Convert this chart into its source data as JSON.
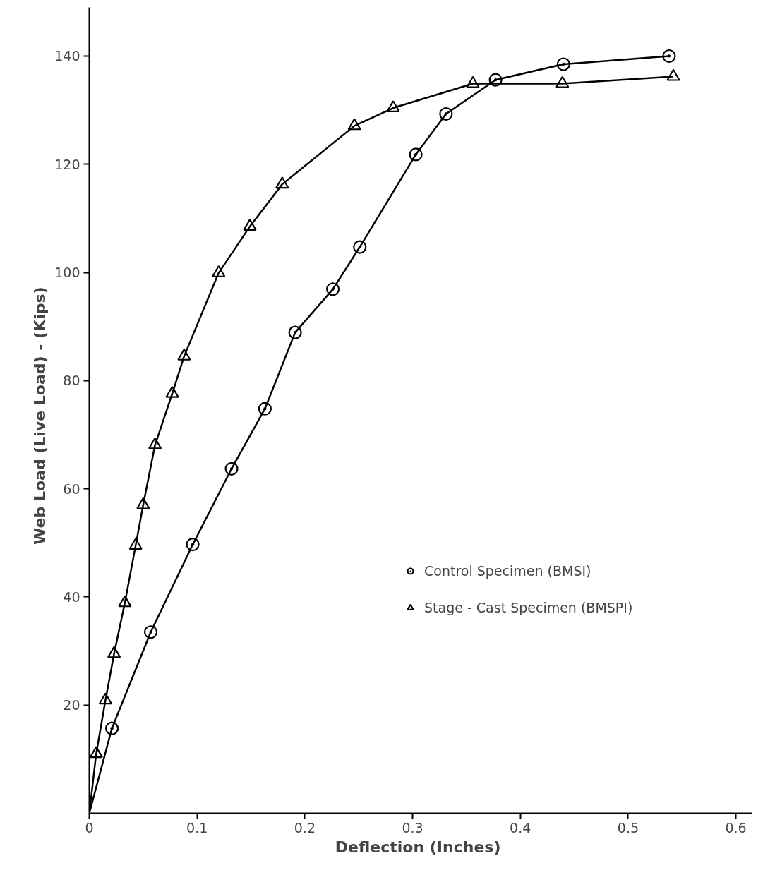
{
  "chart_data": {
    "type": "scatter",
    "xlabel": "Deflection  (Inches)",
    "ylabel": "Web  Load  (Live Load) - (Kips)",
    "xlim": [
      0,
      0.615
    ],
    "ylim": [
      0,
      149
    ],
    "xticks": [
      0,
      0.1,
      0.2,
      0.3,
      0.4,
      0.5,
      0.6
    ],
    "yticks": [
      20,
      40,
      60,
      80,
      100,
      120,
      140
    ],
    "grid": false,
    "legend": "right",
    "series": [
      {
        "name": "Control Specimen (BMSI)",
        "marker": "circle",
        "color": "#000000",
        "x": [
          0.021,
          0.057,
          0.096,
          0.132,
          0.163,
          0.191,
          0.226,
          0.251,
          0.303,
          0.331,
          0.377,
          0.44,
          0.538
        ],
        "values": [
          15.7,
          33.5,
          49.7,
          63.7,
          74.8,
          88.9,
          96.9,
          104.7,
          121.8,
          129.3,
          135.6,
          138.5,
          140.0
        ]
      },
      {
        "name": "Stage - Cast Specimen (BMSPI)",
        "marker": "triangle",
        "color": "#000000",
        "x": [
          0.0064,
          0.015,
          0.023,
          0.033,
          0.043,
          0.05,
          0.061,
          0.077,
          0.088,
          0.12,
          0.149,
          0.179,
          0.246,
          0.282,
          0.356,
          0.439,
          0.542
        ],
        "values": [
          11.0,
          20.9,
          29.5,
          38.9,
          49.5,
          57.0,
          68.1,
          77.6,
          84.5,
          99.9,
          108.5,
          116.3,
          127.1,
          130.4,
          134.9,
          134.9,
          136.2
        ]
      },
      {
        "type": "line",
        "marker": "none",
        "line_style": "solid",
        "color": "#000000",
        "x": [
          0,
          0.021,
          0.057,
          0.096,
          0.132,
          0.163,
          0.191,
          0.226,
          0.251,
          0.303,
          0.331,
          0.377,
          0.44,
          0.538
        ],
        "values": [
          0,
          15.7,
          33.5,
          49.7,
          63.7,
          74.8,
          88.9,
          96.9,
          104.7,
          121.8,
          129.3,
          135.6,
          138.5,
          140.0
        ]
      },
      {
        "type": "line",
        "marker": "none",
        "line_style": "solid",
        "color": "#000000",
        "x": [
          0,
          0.0064,
          0.015,
          0.023,
          0.033,
          0.043,
          0.05,
          0.061,
          0.077,
          0.088,
          0.12,
          0.149,
          0.179,
          0.246,
          0.282,
          0.356,
          0.439,
          0.542
        ],
        "values": [
          0,
          11.0,
          20.9,
          29.5,
          38.9,
          49.5,
          57.0,
          68.1,
          77.6,
          84.5,
          99.9,
          108.5,
          116.3,
          127.1,
          130.4,
          134.9,
          134.9,
          136.2
        ]
      }
    ]
  }
}
